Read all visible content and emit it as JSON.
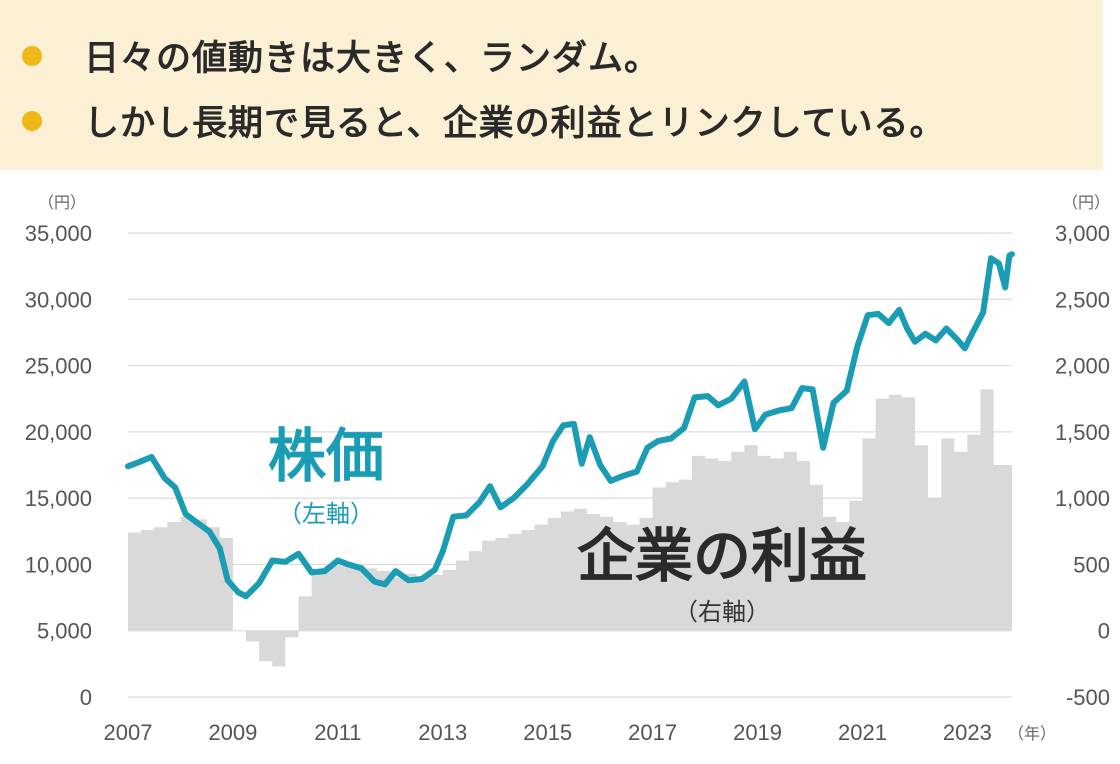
{
  "header": {
    "bullets": [
      "日々の値動きは大きく、ランダム。",
      "しかし長期で見ると、企業の利益とリンクしている。"
    ]
  },
  "colors": {
    "banner_bg": "#fbf0d3",
    "bullet": "#efb717",
    "stock_line": "#1a9cb4",
    "earnings_fill": "#d9d9d9",
    "grid": "#dcdcdc"
  },
  "chart_data": {
    "type": "line+area",
    "x_ticks": [
      "2007",
      "2009",
      "2011",
      "2013",
      "2015",
      "2017",
      "2019",
      "2021",
      "2023"
    ],
    "x_unit": "（年）",
    "x_range": [
      2007.0,
      2023.85
    ],
    "left_axis": {
      "unit": "（円）",
      "range": [
        0,
        35000
      ],
      "ticks": [
        "0",
        "5,000",
        "10,000",
        "15,000",
        "20,000",
        "25,000",
        "30,000",
        "35,000"
      ]
    },
    "right_axis": {
      "unit": "（円）",
      "range": [
        -500,
        3000
      ],
      "ticks": [
        "-500",
        "0",
        "500",
        "1,000",
        "1,500",
        "2,000",
        "2,500",
        "3,000"
      ]
    },
    "series": [
      {
        "name": "株価",
        "sublabel": "（左軸）",
        "axis": "left",
        "type": "line",
        "points": [
          [
            2007.0,
            17400
          ],
          [
            2007.2,
            17700
          ],
          [
            2007.45,
            18100
          ],
          [
            2007.7,
            16500
          ],
          [
            2007.9,
            15800
          ],
          [
            2008.1,
            13800
          ],
          [
            2008.3,
            13200
          ],
          [
            2008.55,
            12500
          ],
          [
            2008.75,
            11200
          ],
          [
            2008.9,
            8800
          ],
          [
            2009.1,
            7900
          ],
          [
            2009.25,
            7600
          ],
          [
            2009.5,
            8600
          ],
          [
            2009.75,
            10300
          ],
          [
            2010.0,
            10200
          ],
          [
            2010.25,
            10800
          ],
          [
            2010.5,
            9400
          ],
          [
            2010.75,
            9500
          ],
          [
            2011.0,
            10300
          ],
          [
            2011.2,
            10000
          ],
          [
            2011.45,
            9700
          ],
          [
            2011.7,
            8700
          ],
          [
            2011.9,
            8500
          ],
          [
            2012.1,
            9500
          ],
          [
            2012.35,
            8800
          ],
          [
            2012.6,
            8900
          ],
          [
            2012.85,
            9600
          ],
          [
            2013.0,
            11000
          ],
          [
            2013.2,
            13600
          ],
          [
            2013.45,
            13700
          ],
          [
            2013.7,
            14700
          ],
          [
            2013.9,
            15900
          ],
          [
            2014.1,
            14300
          ],
          [
            2014.35,
            15000
          ],
          [
            2014.6,
            16000
          ],
          [
            2014.9,
            17400
          ],
          [
            2015.1,
            19300
          ],
          [
            2015.3,
            20500
          ],
          [
            2015.5,
            20600
          ],
          [
            2015.65,
            17600
          ],
          [
            2015.8,
            19600
          ],
          [
            2016.0,
            17500
          ],
          [
            2016.2,
            16300
          ],
          [
            2016.45,
            16700
          ],
          [
            2016.7,
            17000
          ],
          [
            2016.9,
            18800
          ],
          [
            2017.1,
            19300
          ],
          [
            2017.35,
            19500
          ],
          [
            2017.6,
            20300
          ],
          [
            2017.8,
            22600
          ],
          [
            2018.05,
            22700
          ],
          [
            2018.25,
            22000
          ],
          [
            2018.5,
            22500
          ],
          [
            2018.75,
            23800
          ],
          [
            2018.95,
            20200
          ],
          [
            2019.15,
            21300
          ],
          [
            2019.4,
            21600
          ],
          [
            2019.65,
            21800
          ],
          [
            2019.85,
            23300
          ],
          [
            2020.05,
            23200
          ],
          [
            2020.25,
            18800
          ],
          [
            2020.45,
            22200
          ],
          [
            2020.7,
            23100
          ],
          [
            2020.9,
            26400
          ],
          [
            2021.1,
            28800
          ],
          [
            2021.3,
            28900
          ],
          [
            2021.5,
            28200
          ],
          [
            2021.7,
            29200
          ],
          [
            2021.85,
            27800
          ],
          [
            2022.0,
            26800
          ],
          [
            2022.2,
            27400
          ],
          [
            2022.4,
            26900
          ],
          [
            2022.6,
            27800
          ],
          [
            2022.8,
            27000
          ],
          [
            2022.95,
            26300
          ],
          [
            2023.1,
            27500
          ],
          [
            2023.3,
            29000
          ],
          [
            2023.45,
            33100
          ],
          [
            2023.6,
            32700
          ],
          [
            2023.72,
            30900
          ],
          [
            2023.8,
            33300
          ],
          [
            2023.85,
            33400
          ]
        ]
      },
      {
        "name": "企業の利益",
        "sublabel": "（右軸）",
        "axis": "right",
        "type": "area-step",
        "points": [
          [
            2007.0,
            740
          ],
          [
            2007.25,
            760
          ],
          [
            2007.5,
            780
          ],
          [
            2007.75,
            820
          ],
          [
            2008.0,
            860
          ],
          [
            2008.25,
            840
          ],
          [
            2008.5,
            780
          ],
          [
            2008.75,
            700
          ],
          [
            2009.0,
            0
          ],
          [
            2009.25,
            -80
          ],
          [
            2009.5,
            -230
          ],
          [
            2009.75,
            -270
          ],
          [
            2010.0,
            -50
          ],
          [
            2010.25,
            260
          ],
          [
            2010.5,
            430
          ],
          [
            2010.75,
            490
          ],
          [
            2011.0,
            510
          ],
          [
            2011.25,
            500
          ],
          [
            2011.5,
            470
          ],
          [
            2011.75,
            450
          ],
          [
            2012.0,
            400
          ],
          [
            2012.25,
            430
          ],
          [
            2012.5,
            410
          ],
          [
            2012.75,
            420
          ],
          [
            2013.0,
            460
          ],
          [
            2013.25,
            530
          ],
          [
            2013.5,
            600
          ],
          [
            2013.75,
            680
          ],
          [
            2014.0,
            700
          ],
          [
            2014.25,
            730
          ],
          [
            2014.5,
            760
          ],
          [
            2014.75,
            800
          ],
          [
            2015.0,
            850
          ],
          [
            2015.25,
            900
          ],
          [
            2015.5,
            920
          ],
          [
            2015.75,
            880
          ],
          [
            2016.0,
            860
          ],
          [
            2016.25,
            820
          ],
          [
            2016.5,
            800
          ],
          [
            2016.75,
            850
          ],
          [
            2017.0,
            1080
          ],
          [
            2017.25,
            1120
          ],
          [
            2017.5,
            1140
          ],
          [
            2017.75,
            1320
          ],
          [
            2018.0,
            1300
          ],
          [
            2018.25,
            1280
          ],
          [
            2018.5,
            1350
          ],
          [
            2018.75,
            1400
          ],
          [
            2019.0,
            1320
          ],
          [
            2019.25,
            1300
          ],
          [
            2019.5,
            1350
          ],
          [
            2019.75,
            1280
          ],
          [
            2020.0,
            1100
          ],
          [
            2020.25,
            860
          ],
          [
            2020.5,
            820
          ],
          [
            2020.75,
            980
          ],
          [
            2021.0,
            1450
          ],
          [
            2021.25,
            1750
          ],
          [
            2021.5,
            1780
          ],
          [
            2021.75,
            1760
          ],
          [
            2022.0,
            1400
          ],
          [
            2022.25,
            1000
          ],
          [
            2022.5,
            1450
          ],
          [
            2022.75,
            1350
          ],
          [
            2023.0,
            1480
          ],
          [
            2023.25,
            1820
          ],
          [
            2023.5,
            1250
          ],
          [
            2023.85,
            1250
          ]
        ]
      }
    ]
  }
}
